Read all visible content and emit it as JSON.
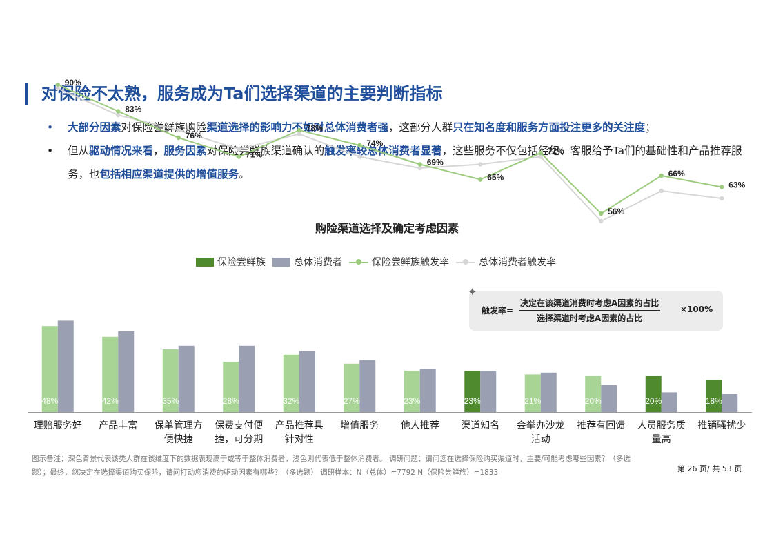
{
  "header": {
    "title": "对保险不太熟，服务成为Ta们选择渠道的主要判断指标"
  },
  "bullets": [
    [
      {
        "t": "大部分因素",
        "hl": true
      },
      {
        "t": "对保险尝鲜族购险",
        "hl": false
      },
      {
        "t": "渠道选择的影响力不如对总体消费者强",
        "hl": true
      },
      {
        "t": "，这部分人群",
        "hl": false
      },
      {
        "t": "只在知名度和服务方面投注更多的关注度",
        "hl": true
      },
      {
        "t": "；",
        "hl": false
      }
    ],
    [
      {
        "t": "但从",
        "hl": false
      },
      {
        "t": "驱动情况来看",
        "hl": true
      },
      {
        "t": "，",
        "hl": false
      },
      {
        "t": "服务因素",
        "hl": true
      },
      {
        "t": "对保险尝鲜族渠道确认的",
        "hl": false
      },
      {
        "t": "触发率较总体消费者显著",
        "hl": true
      },
      {
        "t": "，这些服务不仅包括经纪、客服给予Ta们的基础性和产品推荐服务，也",
        "hl": false
      },
      {
        "t": "包括相应渠道提供的增值服务",
        "hl": true
      },
      {
        "t": "。",
        "hl": false
      }
    ]
  ],
  "formula": {
    "lhs": "触发率=",
    "numerator": "决定在该渠道消费时考虑A因素的占比",
    "denominator": "选择渠道时考虑A因素的占比",
    "multiplier": "×100%"
  },
  "notes": "图示备注：深色背景代表该类人群在该维度下的数据表现高于或等于整体消费者，浅色则代表低于整体消费者。   调研问题：请问您在选择保险购买渠道时，主要/可能考虑哪些因素？（多选题）；最终，您决定在选择渠道购买保险，请问打动您消费的驱动因素有哪些？（多选题）   调研样本：N（总体）=7792      N（保险尝鲜族）=1833",
  "page_number": "第 26 页/ 共 53 页",
  "colors": {
    "title_blue": "#1f4e9a",
    "bar_light_green": "#a8d596",
    "bar_dark_green": "#4f8a2e",
    "bar_gray": "#9aa0b2",
    "line_green": "#9ccb7e",
    "line_gray": "#d6d6d6"
  },
  "chart_data": {
    "type": "bar",
    "title": "购险渠道选择及确定考虑因素",
    "categories": [
      [
        "理赔服务好"
      ],
      [
        "产品丰富"
      ],
      [
        "保单管理方",
        "便快捷"
      ],
      [
        "保费支付便",
        "捷，可分期"
      ],
      [
        "产品推荐具",
        "针对性"
      ],
      [
        "增值服务"
      ],
      [
        "他人推荐"
      ],
      [
        "渠道知名"
      ],
      [
        "会举办沙龙",
        "活动"
      ],
      [
        "推荐有回馈"
      ],
      [
        "人员服务质",
        "量高"
      ],
      [
        "推销骚扰少"
      ]
    ],
    "legend": [
      "保险尝鲜族",
      "总体消费者",
      "保险尝鲜族触发率",
      "总体消费者触发率"
    ],
    "series": [
      {
        "name": "保险尝鲜族",
        "kind": "bar",
        "values": [
          48,
          42,
          35,
          28,
          32,
          27,
          23,
          23,
          21,
          20,
          20,
          18
        ],
        "labels": [
          "48%",
          "42%",
          "35%",
          "28%",
          "32%",
          "27%",
          "23%",
          "23%",
          "21%",
          "20%",
          "20%",
          "18%"
        ],
        "dark": [
          false,
          false,
          false,
          false,
          false,
          false,
          false,
          true,
          false,
          false,
          true,
          true
        ]
      },
      {
        "name": "总体消费者",
        "kind": "bar",
        "values": [
          51,
          45,
          37,
          37,
          34,
          29,
          24,
          23,
          22,
          15,
          11,
          10
        ]
      },
      {
        "name": "保险尝鲜族触发率",
        "kind": "line",
        "values": [
          90,
          83,
          76,
          71,
          78,
          74,
          69,
          65,
          72,
          56,
          66,
          63
        ],
        "labels": [
          "90%",
          "83%",
          "76%",
          "71%",
          "78%",
          "74%",
          "69%",
          "65%",
          "72%",
          "56%",
          "66%",
          "63%"
        ]
      },
      {
        "name": "总体消费者触发率",
        "kind": "line",
        "values": [
          89,
          82,
          78,
          73,
          77,
          71,
          68,
          69,
          71,
          54,
          62,
          60
        ]
      }
    ]
  }
}
